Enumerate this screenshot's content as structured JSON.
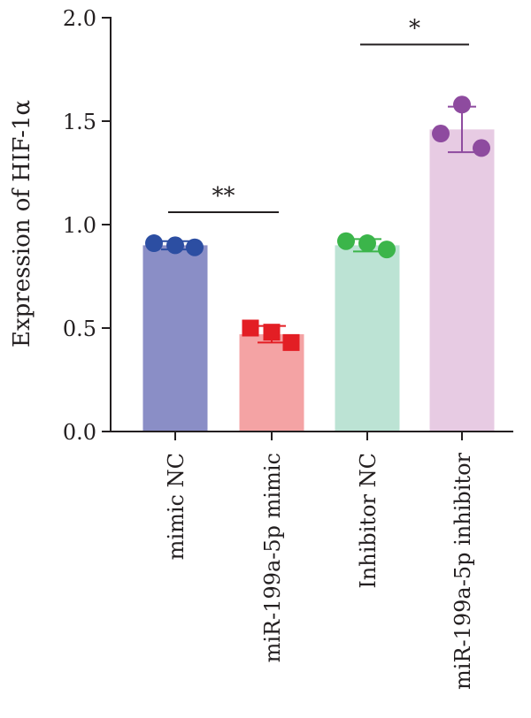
{
  "chart_data": {
    "type": "bar",
    "title": "",
    "xlabel": "",
    "ylabel": "Expression of HIF-1α",
    "ylim": [
      0,
      2.0
    ],
    "y_ticks": [
      0.0,
      0.5,
      1.0,
      1.5,
      2.0
    ],
    "y_tick_labels": [
      "0.0",
      "0.5",
      "1.0",
      "1.5",
      "2.0"
    ],
    "grid": false,
    "legend": "none",
    "categories": [
      "mimic NC",
      "miR-199a-5p mimic",
      "Inhibitor NC",
      "miR-199a-5p inhibitor"
    ],
    "values": [
      0.9,
      0.47,
      0.9,
      1.46
    ],
    "error": [
      0.02,
      0.04,
      0.03,
      0.11
    ],
    "points": [
      [
        0.91,
        0.9,
        0.89
      ],
      [
        0.5,
        0.48,
        0.43
      ],
      [
        0.92,
        0.91,
        0.88
      ],
      [
        1.44,
        1.58,
        1.37
      ]
    ],
    "bar_colors": [
      "#8a8ec6",
      "#f4a3a4",
      "#bce3d4",
      "#e7cbe3"
    ],
    "point_colors": [
      "#2c4ea2",
      "#e31e24",
      "#3bb54a",
      "#8e4b9f"
    ],
    "point_shapes": [
      "circle",
      "square",
      "circle",
      "circle"
    ],
    "significance": [
      {
        "label": "**",
        "from": 0,
        "to": 1,
        "y": 1.06
      },
      {
        "label": "*",
        "from": 2,
        "to": 3,
        "y": 1.87
      }
    ]
  }
}
